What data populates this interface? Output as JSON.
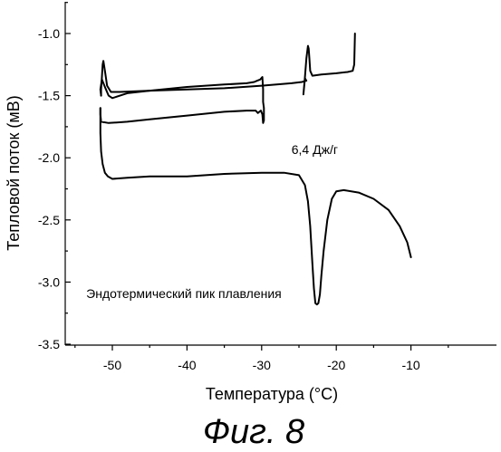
{
  "figure_caption": "Фиг. 8",
  "chart_data": {
    "type": "line",
    "title": "",
    "xlabel": "Температура (°C)",
    "ylabel": "Тепловой поток (мВ)",
    "xlim": [
      -55,
      -5
    ],
    "ylim": [
      -3.5,
      -0.8
    ],
    "x_ticks": [
      "-50",
      "-40",
      "-30",
      "-20",
      "-10"
    ],
    "y_ticks": [
      "-1.0",
      "-1.5",
      "-2.0",
      "-2.5",
      "-3.0",
      "-3.5"
    ],
    "grid": false,
    "legend": "none",
    "annotations": [
      {
        "text": "6,4 Дж/г",
        "x": -26,
        "y": -1.97
      },
      {
        "text": "Эндотермический пик плавления",
        "x": -53.5,
        "y": -3.13
      }
    ],
    "series": [
      {
        "x": [
          -17.5,
          -17.6,
          -17.8,
          -18.5,
          -20,
          -22,
          -23.2,
          -23.5,
          -23.6,
          -23.7,
          -23.8,
          -24.0,
          -24.2,
          -24.4,
          -24.2,
          -24.0,
          -24.6,
          -26,
          -30,
          -35,
          -40,
          -45,
          -49,
          -50.2,
          -50.7,
          -51.0,
          -51.2,
          -51.3,
          -51.4,
          -51.5,
          -51.5
        ],
        "y": [
          -1.0,
          -1.25,
          -1.3,
          -1.31,
          -1.32,
          -1.33,
          -1.34,
          -1.3,
          -1.2,
          -1.12,
          -1.1,
          -1.2,
          -1.35,
          -1.49,
          -1.36,
          -1.38,
          -1.39,
          -1.4,
          -1.42,
          -1.44,
          -1.45,
          -1.46,
          -1.47,
          -1.47,
          -1.42,
          -1.3,
          -1.22,
          -1.25,
          -1.35,
          -1.45,
          -1.5
        ]
      },
      {
        "x": [
          -51.5,
          -51.6,
          -51.4,
          -51.0,
          -50.5,
          -50.0,
          -48,
          -45,
          -40,
          -35,
          -32,
          -31,
          -30.6,
          -30.2,
          -29.9,
          -29.8,
          -29.8,
          -29.7,
          -29.7,
          -29.8,
          -29.9,
          -30.1,
          -30.3,
          -30.5,
          -30.8,
          -32,
          -35,
          -40,
          -45,
          -48,
          -50.5,
          -51.5,
          -51.6,
          -51.6
        ],
        "y": [
          -1.5,
          -1.45,
          -1.37,
          -1.43,
          -1.5,
          -1.52,
          -1.48,
          -1.46,
          -1.43,
          -1.41,
          -1.4,
          -1.39,
          -1.38,
          -1.37,
          -1.35,
          -1.45,
          -1.55,
          -1.6,
          -1.7,
          -1.72,
          -1.65,
          -1.62,
          -1.63,
          -1.64,
          -1.62,
          -1.62,
          -1.63,
          -1.66,
          -1.69,
          -1.71,
          -1.72,
          -1.71,
          -1.65,
          -1.6
        ]
      },
      {
        "x": [
          -51.6,
          -51.6,
          -51.5,
          -51.3,
          -51.0,
          -50.6,
          -50.0,
          -48,
          -45,
          -40,
          -35,
          -30,
          -27,
          -25,
          -24.2,
          -23.8,
          -23.5,
          -23.2,
          -23.0,
          -22.8,
          -22.6,
          -22.4,
          -22.2,
          -22.0,
          -21.7,
          -21.2,
          -20.6,
          -20.0,
          -19.0,
          -17,
          -15,
          -13,
          -11.5,
          -10.5,
          -10.0
        ],
        "y": [
          -1.6,
          -1.8,
          -1.95,
          -2.05,
          -2.12,
          -2.15,
          -2.17,
          -2.16,
          -2.15,
          -2.15,
          -2.13,
          -2.12,
          -2.12,
          -2.14,
          -2.22,
          -2.35,
          -2.55,
          -2.85,
          -3.05,
          -3.17,
          -3.18,
          -3.17,
          -3.1,
          -2.95,
          -2.75,
          -2.5,
          -2.33,
          -2.27,
          -2.26,
          -2.28,
          -2.33,
          -2.42,
          -2.55,
          -2.68,
          -2.8
        ]
      }
    ]
  }
}
